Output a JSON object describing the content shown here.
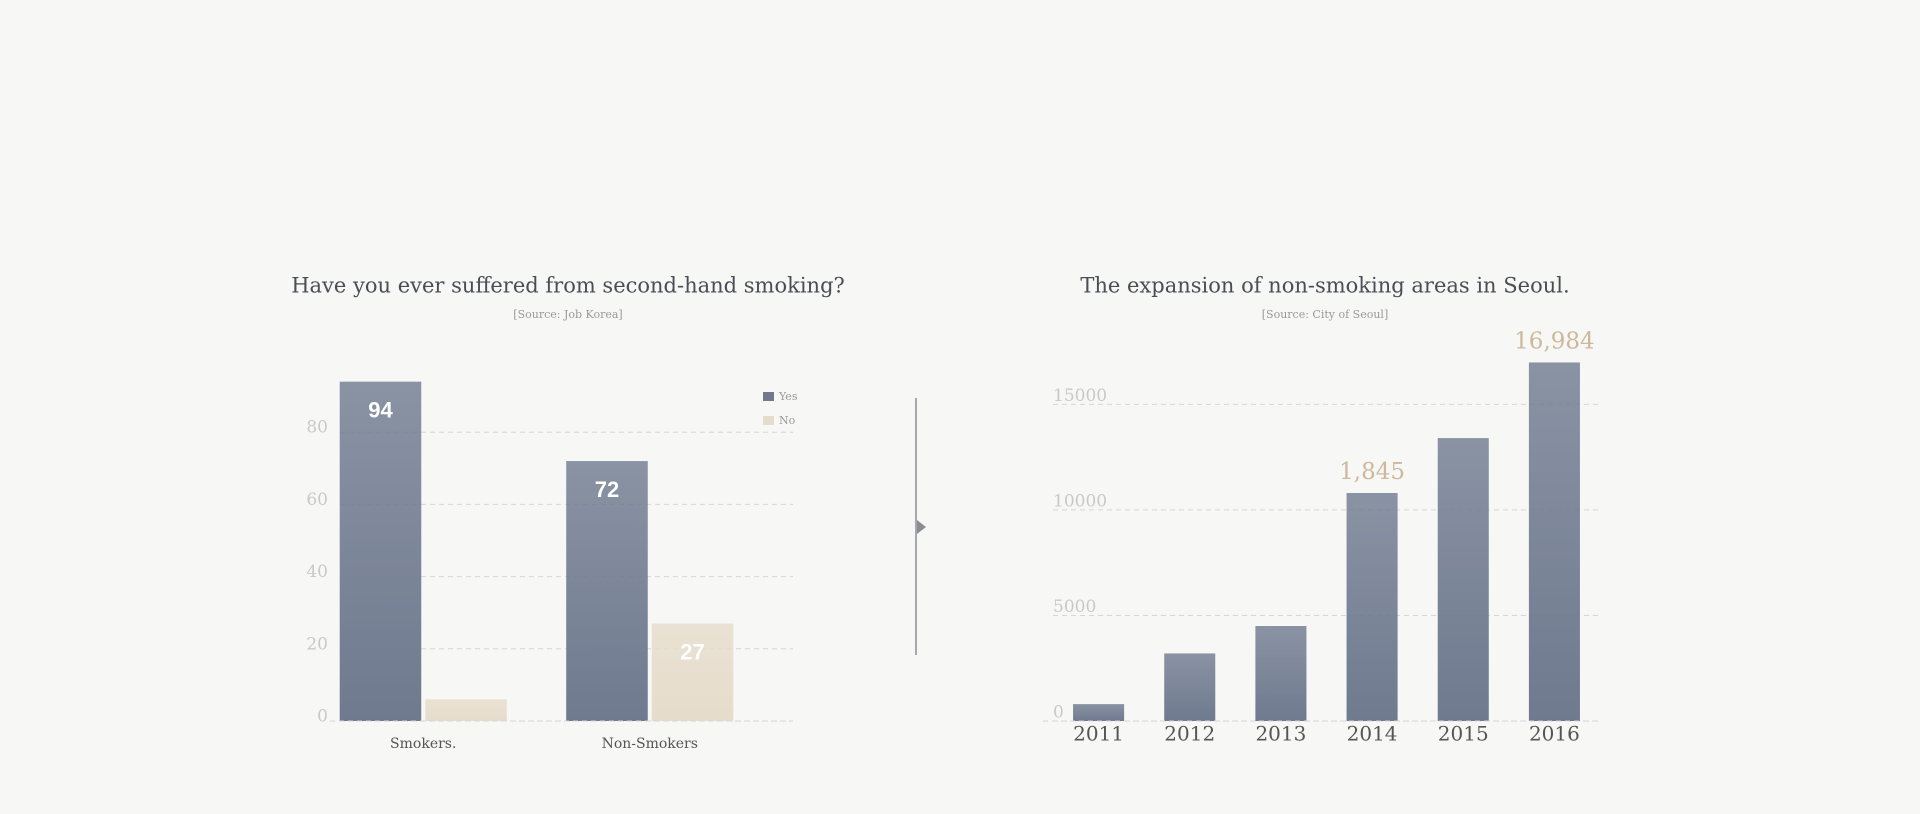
{
  "chart_data": [
    {
      "type": "bar",
      "title": "Have you ever suffered from second-hand smoking?",
      "subtitle": "[Source: Job Korea]",
      "categories": [
        "Smokers.",
        "Non-Smokers"
      ],
      "series": [
        {
          "name": "Yes",
          "color": "#6f7a8f",
          "values": [
            94,
            72
          ],
          "value_labels": [
            "94",
            "72"
          ]
        },
        {
          "name": "No",
          "color": "#e6dccb",
          "values": [
            6,
            27
          ],
          "value_labels": [
            null,
            "27"
          ]
        }
      ],
      "ylim": [
        0,
        100
      ],
      "yticks": [
        0,
        20,
        40,
        60,
        80
      ],
      "grid": true,
      "legend": "top-right"
    },
    {
      "type": "bar",
      "title": "The expansion of non-smoking areas in Seoul.",
      "subtitle": "[Source: City of Seoul]",
      "categories": [
        "2011",
        "2012",
        "2013",
        "2014",
        "2015",
        "2016"
      ],
      "values": [
        800,
        3200,
        4500,
        10800,
        13400,
        16984
      ],
      "value_labels": [
        null,
        null,
        null,
        null,
        null,
        "16,984"
      ],
      "annotations": [
        {
          "text": "1,845",
          "category": "2014"
        }
      ],
      "color": "#6f7a8f",
      "ylim": [
        0,
        18000
      ],
      "yticks": [
        0,
        5000,
        10000,
        15000
      ],
      "grid": true
    }
  ]
}
